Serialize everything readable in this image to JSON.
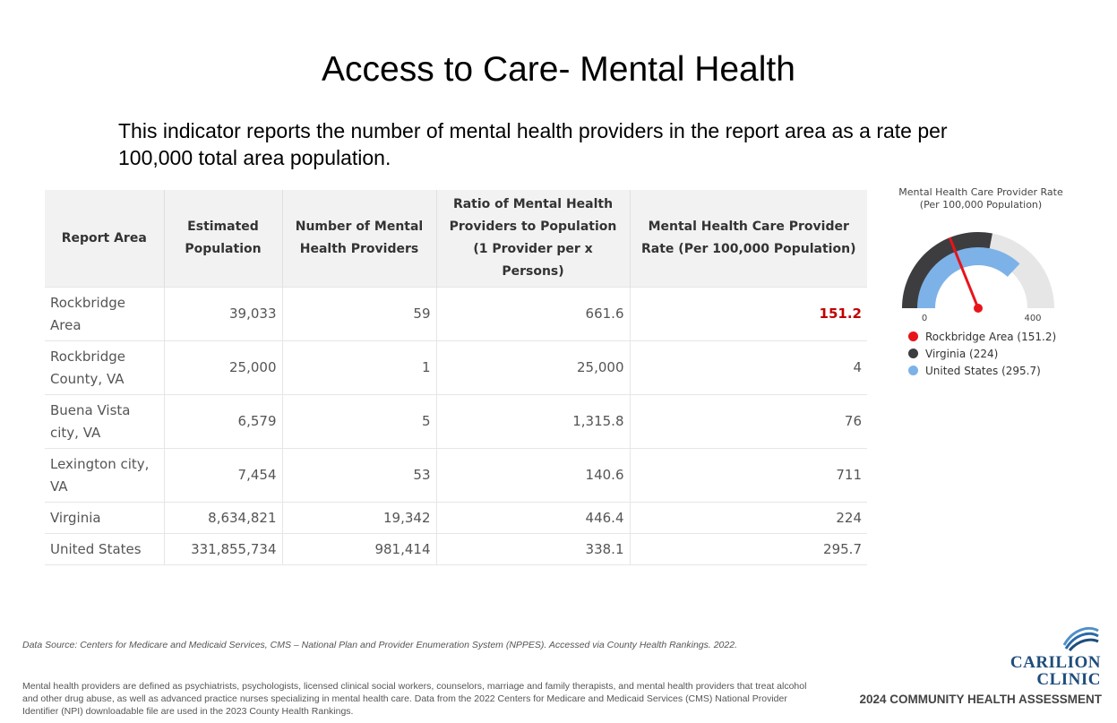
{
  "title": "Access to Care- Mental Health",
  "intro": "This indicator reports the number of mental health providers in the report area as a rate per 100,000 total area population.",
  "table": {
    "headers": [
      "Report Area",
      "Estimated Population",
      "Number of Mental Health Providers",
      "Ratio of Mental Health Providers to Population (1 Provider per x Persons)",
      "Mental Health Care Provider Rate (Per 100,000 Population)"
    ],
    "rows": [
      {
        "area": "Rockbridge Area",
        "population": "39,033",
        "providers": "59",
        "ratio": "661.6",
        "rate": "151.2"
      },
      {
        "area": "Rockbridge County, VA",
        "population": "25,000",
        "providers": "1",
        "ratio": "25,000",
        "rate": "4"
      },
      {
        "area": "Buena Vista city, VA",
        "population": "6,579",
        "providers": "5",
        "ratio": "1,315.8",
        "rate": "76"
      },
      {
        "area": "Lexington city, VA",
        "population": "7,454",
        "providers": "53",
        "ratio": "140.6",
        "rate": "711"
      },
      {
        "area": "Virginia",
        "population": "8,634,821",
        "providers": "19,342",
        "ratio": "446.4",
        "rate": "224"
      },
      {
        "area": "United States",
        "population": "331,855,734",
        "providers": "981,414",
        "ratio": "338.1",
        "rate": "295.7"
      }
    ]
  },
  "gauge": {
    "title_line1": "Mental Health Care Provider Rate",
    "title_line2": "(Per 100,000 Population)",
    "min_label": "0",
    "max_label": "400",
    "min": 0,
    "max": 400,
    "rockbridge_value": 151.2,
    "virginia_value": 224,
    "us_value": 295.7,
    "legend": [
      {
        "label": "Rockbridge Area (151.2)",
        "color": "#e8141a"
      },
      {
        "label": "Virginia (224)",
        "color": "#3d3d40"
      },
      {
        "label": "United States (295.7)",
        "color": "#7cb2e8"
      }
    ],
    "track_color": "#e6e6e6"
  },
  "source": "Data Source: Centers for Medicare and Medicaid Services, CMS – National Plan and Provider Enumeration System (NPPES). Accessed via County Health Rankings. 2022.",
  "definition": "Mental health providers are defined as psychiatrists, psychologists, licensed clinical social workers, counselors, marriage and family therapists, and mental health providers that treat alcohol and other drug abuse, as well as advanced practice nurses specializing in mental health care. Data from the 2022 Centers for Medicare and Medicaid Services (CMS) National Provider Identifier (NPI) downloadable file are used in the 2023 County Health Rankings.",
  "logo": {
    "line1": "CARILION",
    "line2": "CLINIC"
  },
  "assessment_label": "2024 COMMUNITY HEALTH ASSESSMENT"
}
